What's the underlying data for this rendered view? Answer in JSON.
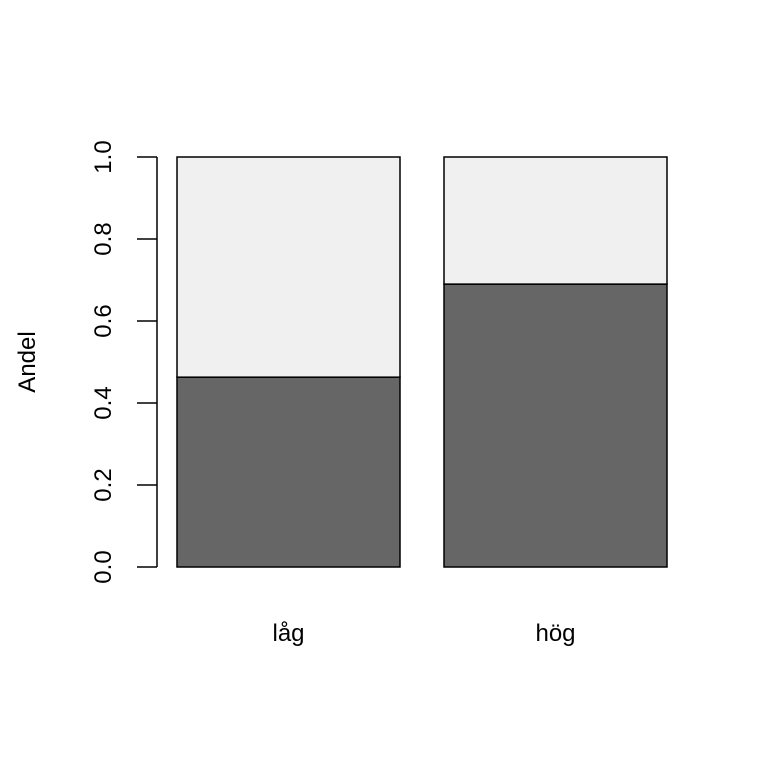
{
  "chart_data": {
    "type": "bar",
    "stacked": true,
    "categories": [
      "låg",
      "hög"
    ],
    "series": [
      {
        "values": [
          0.463,
          0.69
        ],
        "color": "#666666"
      },
      {
        "values": [
          0.537,
          0.31
        ],
        "color": "#f0f0f0"
      }
    ],
    "xlabel": "",
    "ylabel": "Andel",
    "ylim": [
      0,
      1
    ],
    "yticks": [
      "0.0",
      "0.2",
      "0.4",
      "0.6",
      "0.8",
      "1.0"
    ],
    "grid": false,
    "legend": "none"
  }
}
